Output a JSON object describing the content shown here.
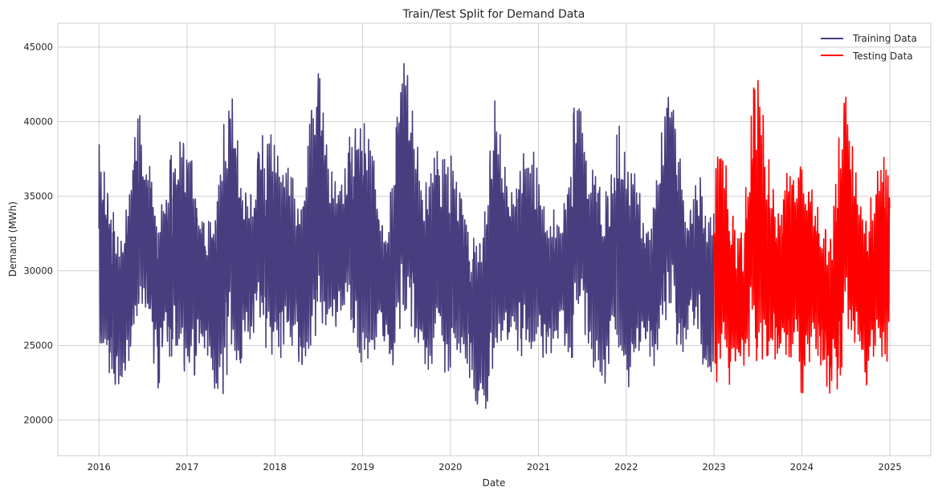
{
  "chart_data": {
    "type": "line",
    "title": "Train/Test Split for Demand Data",
    "xlabel": "Date",
    "ylabel": "Demand (MWh)",
    "x_ticks": [
      "2016",
      "2017",
      "2018",
      "2019",
      "2020",
      "2021",
      "2022",
      "2023",
      "2024",
      "2025"
    ],
    "y_ticks": [
      "20000",
      "25000",
      "30000",
      "35000",
      "40000",
      "45000"
    ],
    "x_range": [
      "2015-07-14",
      "2025-06-20"
    ],
    "ylim": [
      17600,
      46600
    ],
    "grid": true,
    "legend_position": "top-right",
    "series": [
      {
        "name": "Training Data",
        "color": "#483d7e",
        "x_range": [
          "2016-01-01",
          "2022-12-31"
        ],
        "monthly_low": [
          [
            23200,
            24500,
            21300,
            22300,
            23500,
            24300,
            27500,
            25500,
            22000,
            24200,
            24300,
            24500
          ],
          [
            22600,
            23000,
            24500,
            23900,
            20700,
            21800,
            24300,
            23400,
            24600,
            25800,
            26300,
            24500
          ],
          [
            22900,
            24500,
            24800,
            24400,
            21900,
            24700,
            26300,
            25500,
            25800,
            26900,
            27100,
            25500
          ],
          [
            23500,
            24400,
            24900,
            25300,
            21000,
            25600,
            26100,
            25000,
            22500,
            23400,
            24200,
            23800
          ],
          [
            21500,
            24600,
            24000,
            22200,
            18800,
            20300,
            22700,
            25500,
            24200,
            24800,
            24100,
            24300
          ],
          [
            24800,
            22300,
            24200,
            26000,
            23600,
            24500,
            26600,
            24300,
            22900,
            22300,
            23600,
            24600
          ],
          [
            22100,
            22500,
            24300,
            24600,
            23500,
            25700,
            27600,
            24900,
            24500,
            26600,
            25700,
            21500
          ]
        ],
        "monthly_high": [
          [
            38600,
            36800,
            33900,
            32800,
            34600,
            41600,
            39600,
            37700,
            35400,
            35800,
            38100,
            38800
          ],
          [
            40700,
            37400,
            34200,
            33400,
            35000,
            40700,
            42900,
            39600,
            36400,
            35500,
            38800,
            39600
          ],
          [
            38600,
            38500,
            37400,
            35400,
            37300,
            40800,
            44200,
            39700,
            35900,
            36200,
            38800,
            39500
          ],
          [
            40100,
            39100,
            36400,
            33100,
            35600,
            41800,
            45300,
            40600,
            37000,
            36100,
            37900,
            38400
          ],
          [
            38400,
            36900,
            34800,
            32200,
            32100,
            36300,
            41700,
            38500,
            36500,
            35400,
            38200,
            38900
          ],
          [
            36300,
            35600,
            34700,
            33200,
            36300,
            41400,
            41200,
            38500,
            35800,
            35300,
            37200,
            39800
          ],
          [
            38300,
            37600,
            35100,
            33000,
            34800,
            41400,
            43200,
            39300,
            35300,
            34700,
            36800,
            34400
          ]
        ]
      },
      {
        "name": "Testing Data",
        "color": "#ff0000",
        "x_range": [
          "2023-01-01",
          "2024-12-31"
        ],
        "monthly_low": [
          [
            21500,
            24500,
            22600,
            21300,
            22700,
            24500,
            23900,
            24200,
            24600,
            23200,
            24300,
            24100
          ],
          [
            21100,
            23800,
            24300,
            23300,
            20900,
            22300,
            25000,
            23500,
            24000,
            22100,
            23600,
            23300
          ]
        ],
        "monthly_high": [
          [
            37500,
            38800,
            36200,
            34000,
            32600,
            40300,
            44500,
            39300,
            35700,
            34400,
            36600,
            37200
          ],
          [
            36900,
            37300,
            34500,
            33200,
            32400,
            39400,
            43000,
            38700,
            34300,
            33800,
            36400,
            37600
          ]
        ]
      }
    ]
  }
}
